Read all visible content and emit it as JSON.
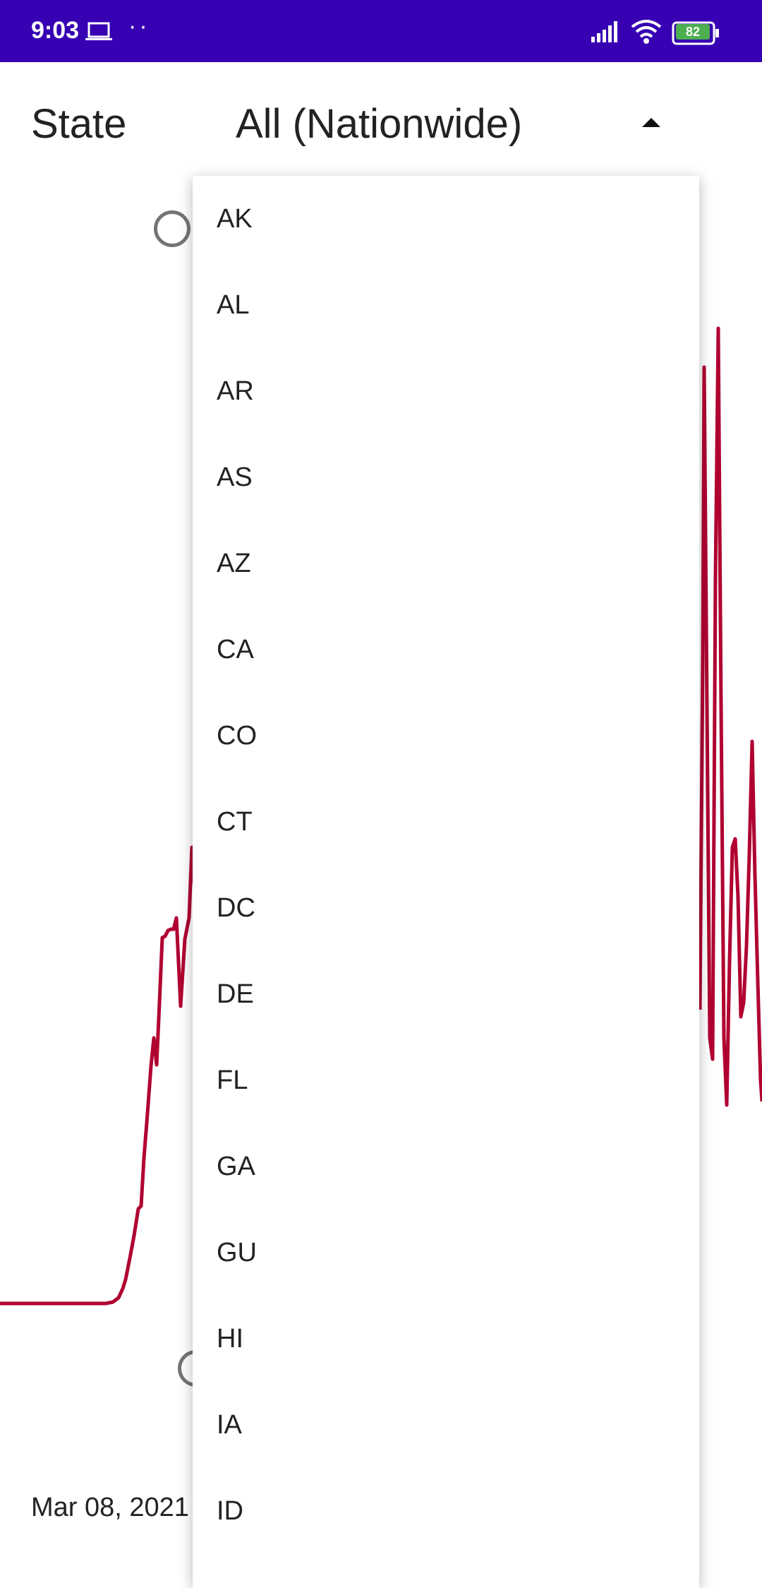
{
  "status_bar": {
    "time": "9:03",
    "battery": "82",
    "background": "#3700b3"
  },
  "filter": {
    "label": "State",
    "selected": "All (Nationwide)"
  },
  "dropdown": {
    "options": [
      "AK",
      "AL",
      "AR",
      "AS",
      "AZ",
      "CA",
      "CO",
      "CT",
      "DC",
      "DE",
      "FL",
      "GA",
      "GU",
      "HI",
      "IA",
      "ID"
    ]
  },
  "chart": {
    "date_label": "Mar 08, 2021",
    "line_color": "#b00030"
  }
}
